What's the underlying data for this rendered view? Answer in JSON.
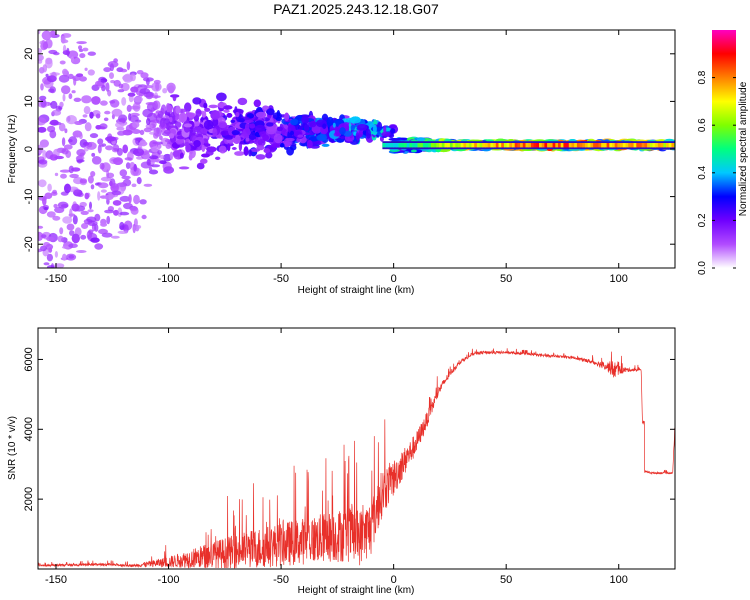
{
  "figure": {
    "title": "PAZ1.2025.243.12.18.G07"
  },
  "chart_data": [
    {
      "type": "heatmap",
      "xlabel": "Height of straight line (km)",
      "ylabel": "Frequency (Hz)",
      "xlim": [
        -158,
        125
      ],
      "ylim": [
        -25,
        25
      ],
      "xticks": [
        -150,
        -100,
        -50,
        0,
        50,
        100
      ],
      "yticks": [
        -20,
        -10,
        0,
        10,
        20
      ],
      "band_center_hz": 0.8,
      "description_of_signal": [
        {
          "x": -150,
          "spread_hz": 25,
          "amp": 0.15
        },
        {
          "x": -110,
          "spread_hz": 16,
          "amp": 0.15
        },
        {
          "x": -80,
          "spread_hz": 8,
          "amp": 0.22
        },
        {
          "x": -50,
          "spread_hz": 6,
          "amp": 0.3
        },
        {
          "x": -20,
          "spread_hz": 3,
          "amp": 0.38
        },
        {
          "x": 0,
          "spread_hz": 1.5,
          "amp": 0.45
        },
        {
          "x": 30,
          "spread_hz": 0.9,
          "amp": 0.7
        },
        {
          "x": 70,
          "spread_hz": 0.9,
          "amp": 0.85
        },
        {
          "x": 100,
          "spread_hz": 0.9,
          "amp": 0.8
        },
        {
          "x": 125,
          "spread_hz": 0.9,
          "amp": 0.7
        }
      ]
    },
    {
      "type": "colorbar",
      "label": "Normalized spectral amplitude",
      "range": [
        0,
        1
      ],
      "ticks": [
        "0.0",
        "0.2",
        "0.4",
        "0.6",
        "0.8"
      ],
      "tick_values": [
        0,
        0.2,
        0.4,
        0.6,
        0.8
      ],
      "colormap": [
        "#ffffff",
        "#b14bff",
        "#6f00ff",
        "#0000ff",
        "#00c8ff",
        "#00ff7f",
        "#7fff00",
        "#ffff00",
        "#ff8000",
        "#ff0000",
        "#ff00c0"
      ]
    },
    {
      "type": "line",
      "xlabel": "Height of straight line (km)",
      "ylabel": "SNR (10 * v/v)",
      "xlim": [
        -158,
        125
      ],
      "ylim": [
        0,
        6900
      ],
      "xticks": [
        -150,
        -100,
        -50,
        0,
        50,
        100
      ],
      "yticks": [
        2000,
        4000,
        6000
      ],
      "color": "#e8302a",
      "envelope": {
        "x": [
          -158,
          -130,
          -115,
          -100,
          -90,
          -80,
          -70,
          -60,
          -50,
          -40,
          -30,
          -20,
          -15,
          -10,
          -5,
          0,
          5,
          10,
          15,
          20,
          25,
          30,
          35,
          40,
          50,
          60,
          70,
          80,
          90,
          95,
          98,
          100,
          105,
          110,
          111,
          115,
          120,
          124,
          125
        ],
        "base": [
          100,
          130,
          100,
          200,
          300,
          400,
          500,
          600,
          700,
          800,
          900,
          1000,
          900,
          1200,
          2200,
          2600,
          3100,
          3600,
          4300,
          5100,
          5600,
          5950,
          6150,
          6200,
          6200,
          6150,
          6100,
          6050,
          5900,
          5800,
          5700,
          5700,
          5700,
          5700,
          2800,
          2750,
          2750,
          2750,
          4200
        ],
        "noise": [
          60,
          80,
          80,
          350,
          600,
          900,
          1100,
          1300,
          1400,
          1500,
          1600,
          1800,
          1800,
          1800,
          1500,
          1200,
          900,
          700,
          500,
          300,
          180,
          120,
          100,
          100,
          80,
          80,
          80,
          80,
          150,
          300,
          600,
          300,
          100,
          100,
          80,
          60,
          60,
          60,
          300
        ]
      }
    }
  ]
}
